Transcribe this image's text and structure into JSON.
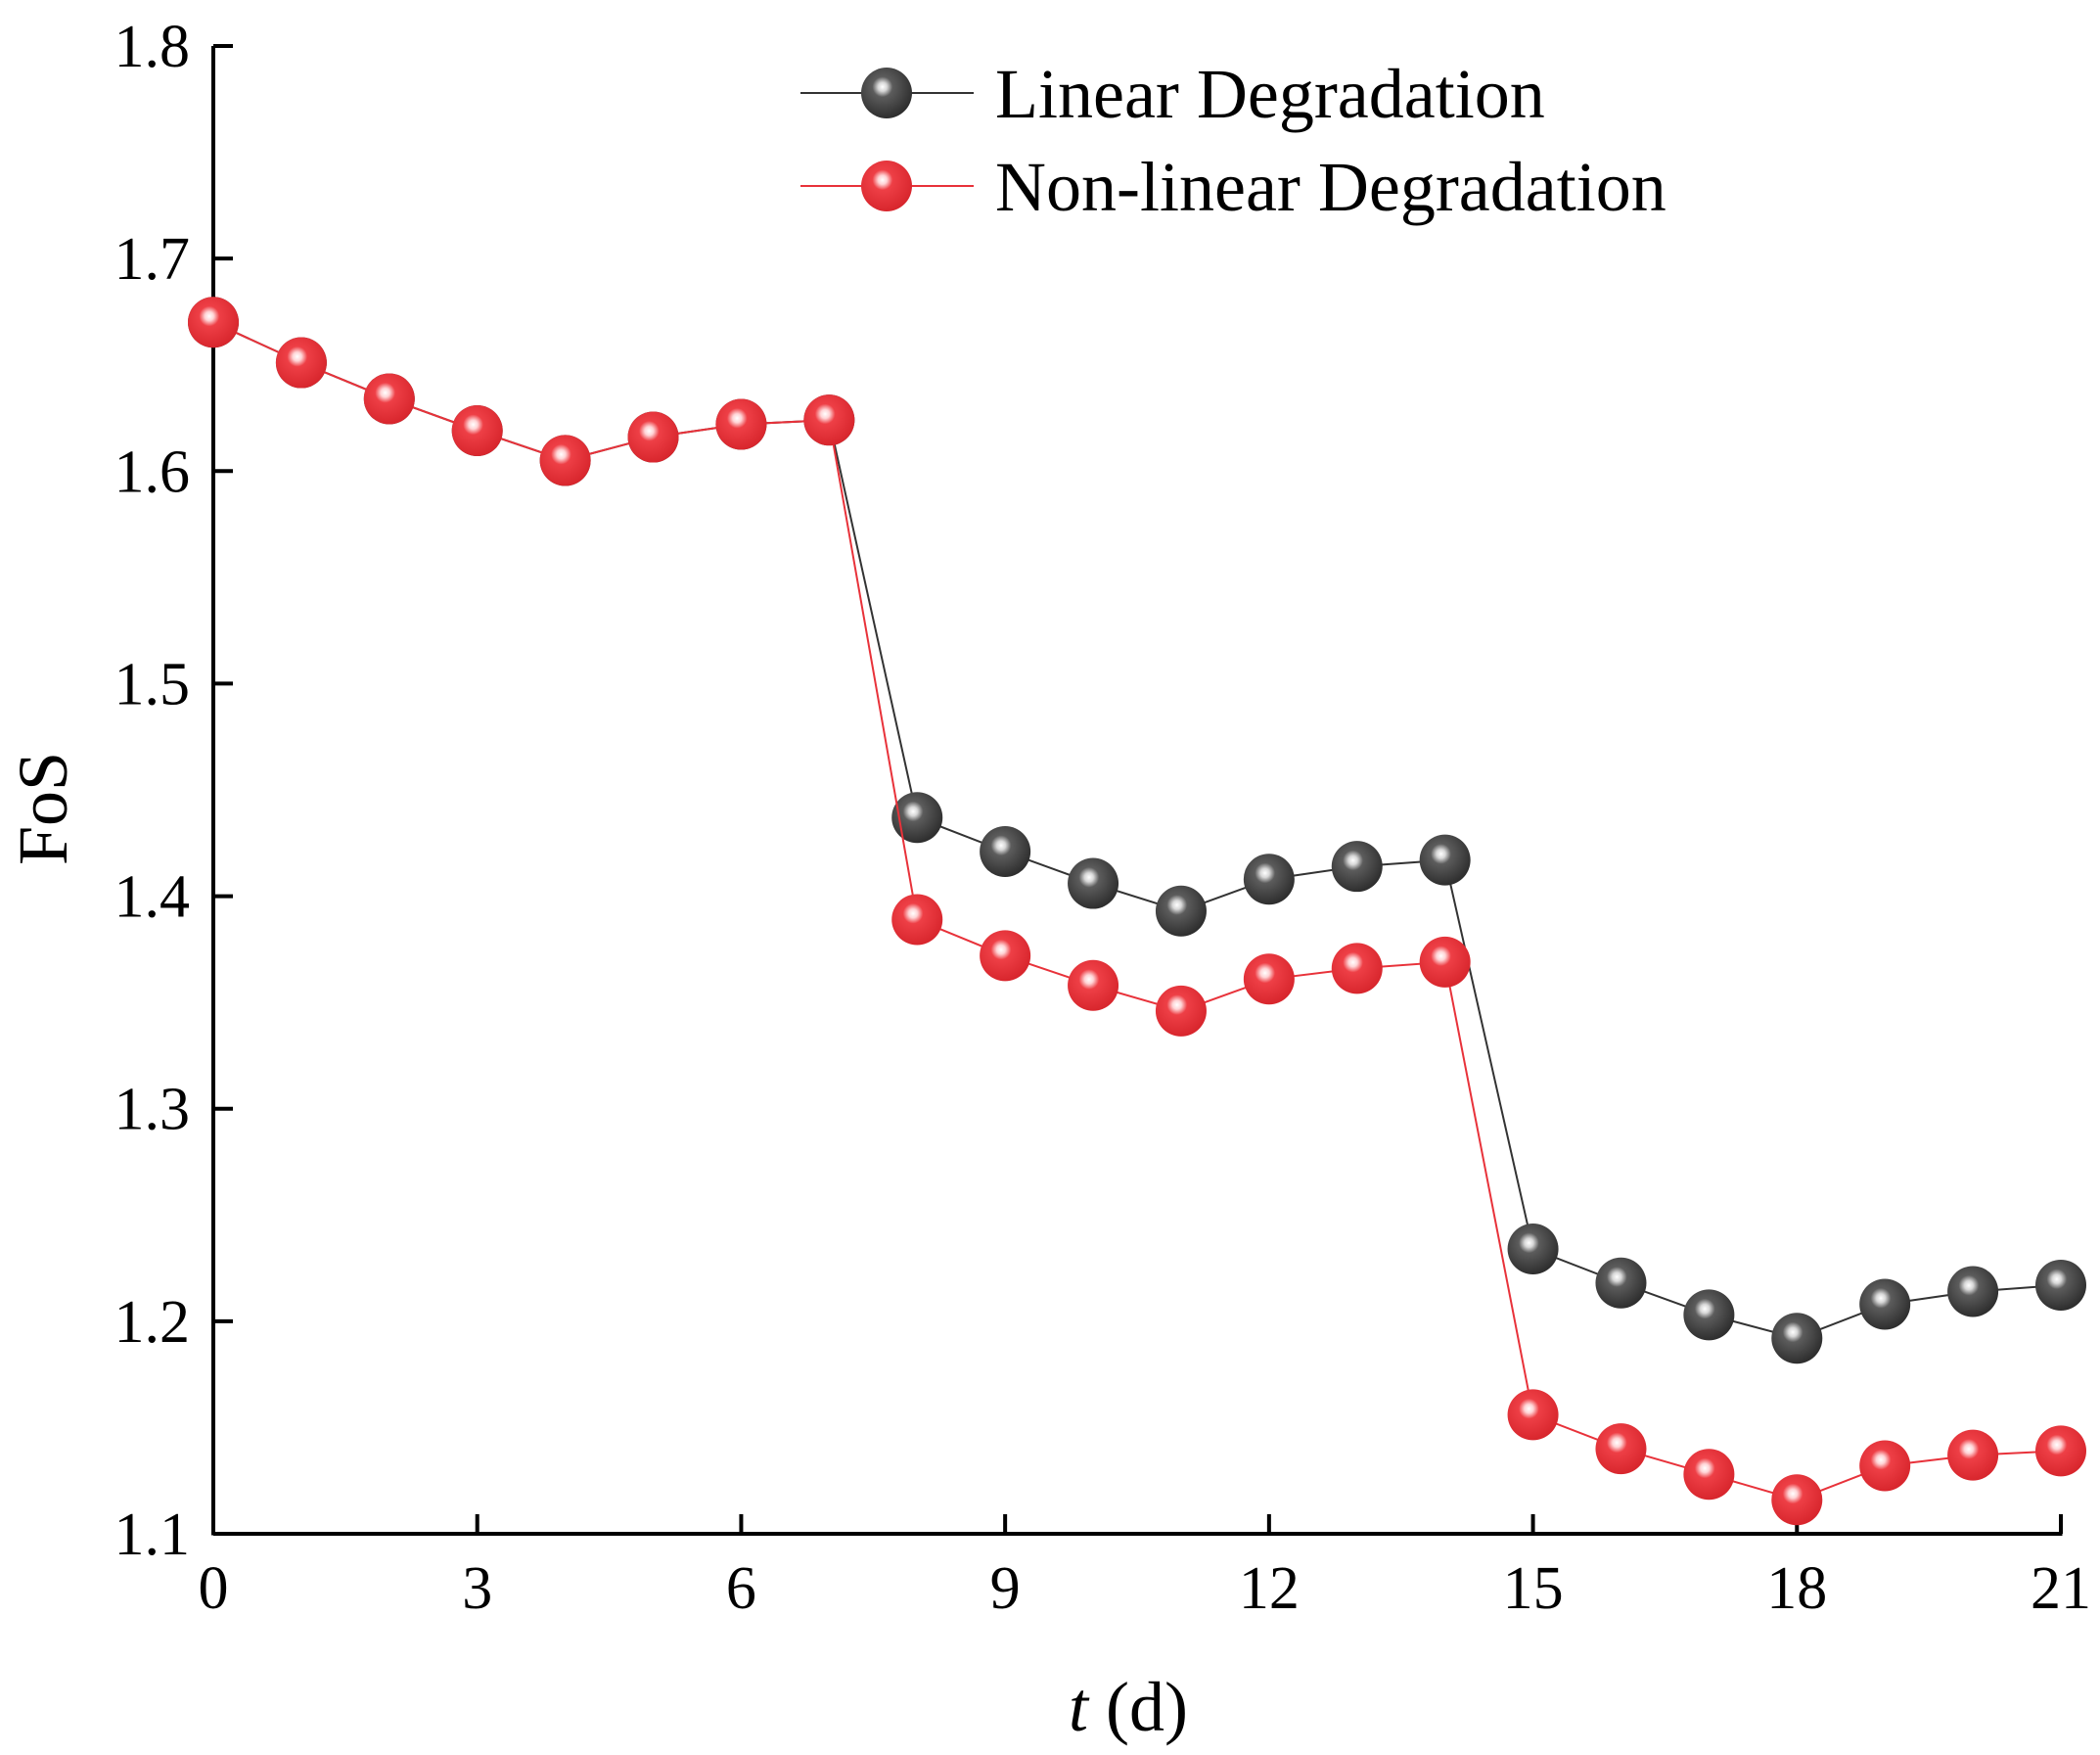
{
  "chart_data": {
    "type": "line",
    "title": "",
    "xlabel_italic": "t",
    "xlabel_rest": " (d)",
    "ylabel": "FoS",
    "xlim": [
      0,
      21
    ],
    "ylim": [
      1.1,
      1.8
    ],
    "xticks": [
      0,
      3,
      6,
      9,
      12,
      15,
      18,
      21
    ],
    "yticks": [
      1.1,
      1.2,
      1.3,
      1.4,
      1.5,
      1.6,
      1.7,
      1.8
    ],
    "xtick_labels": [
      "0",
      "3",
      "6",
      "9",
      "12",
      "15",
      "18",
      "21"
    ],
    "ytick_labels": [
      "1.1",
      "1.2",
      "1.3",
      "1.4",
      "1.5",
      "1.6",
      "1.7",
      "1.8"
    ],
    "x": [
      0,
      1,
      2,
      3,
      4,
      5,
      6,
      7,
      8,
      9,
      10,
      11,
      12,
      13,
      14,
      15,
      16,
      17,
      18,
      19,
      20,
      21
    ],
    "legend_position": "top-center",
    "series": [
      {
        "name": "Linear Degradation",
        "color": "#404040",
        "line_color": "#333333",
        "values": [
          1.67,
          1.651,
          1.634,
          1.619,
          1.605,
          1.616,
          1.622,
          1.624,
          1.437,
          1.421,
          1.406,
          1.393,
          1.408,
          1.414,
          1.417,
          1.234,
          1.218,
          1.203,
          1.192,
          1.208,
          1.214,
          1.217
        ]
      },
      {
        "name": "Non-linear Degradation",
        "color": "#e8323a",
        "line_color": "#e8323a",
        "values": [
          1.67,
          1.651,
          1.634,
          1.619,
          1.605,
          1.616,
          1.622,
          1.624,
          1.389,
          1.372,
          1.358,
          1.346,
          1.361,
          1.366,
          1.369,
          1.156,
          1.14,
          1.128,
          1.116,
          1.132,
          1.137,
          1.139
        ]
      }
    ]
  }
}
